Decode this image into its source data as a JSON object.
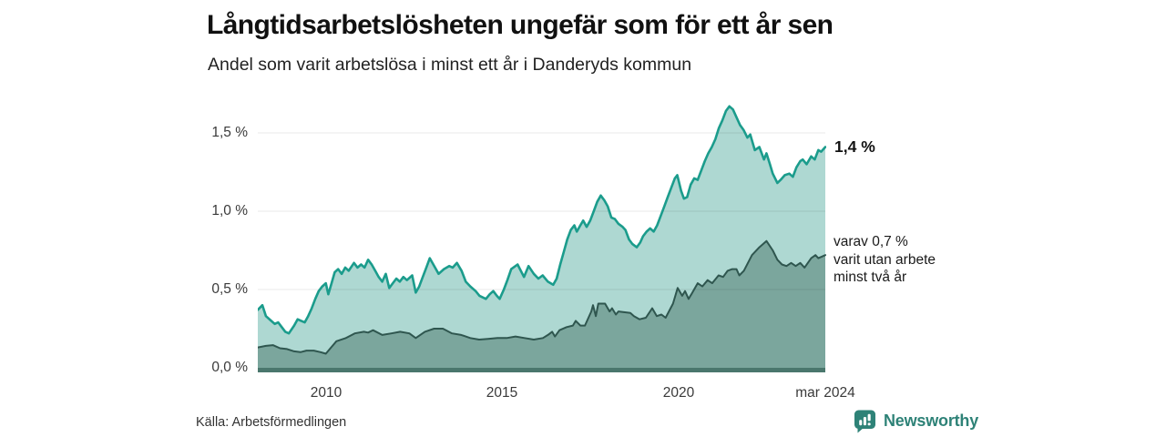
{
  "source": "Källa: Arbetsförmedlingen",
  "branding": {
    "name": "Newsworthy",
    "color": "#2e8277",
    "icon": "bar-chart-speech-bubble"
  },
  "chart_data": {
    "type": "area",
    "title": "Långtidsarbetslösheten ungefär som för ett år sen",
    "subtitle": "Andel som varit arbetslösa i minst ett år i Danderyds kommun",
    "unit": "%",
    "grid": true,
    "legend_position": "right-annotations",
    "x_domain": [
      2008.07,
      2024.17
    ],
    "y_domain": [
      0,
      1.8
    ],
    "x_ticks": [
      {
        "value": 2010,
        "label": "2010"
      },
      {
        "value": 2015,
        "label": "2015"
      },
      {
        "value": 2020,
        "label": "2020"
      },
      {
        "value": 2024.17,
        "label": "mar 2024"
      }
    ],
    "y_ticks": [
      {
        "value": 0.0,
        "label": "0,0 %"
      },
      {
        "value": 0.5,
        "label": "0,5 %"
      },
      {
        "value": 1.0,
        "label": "1,0 %"
      },
      {
        "value": 1.5,
        "label": "1,5 %"
      }
    ],
    "baseline_color": "#4a776d",
    "gridline_color": "rgba(0,0,0,0.09)",
    "series": [
      {
        "name": "Andel arbetslösa minst ett år",
        "color": "#1b9c8c",
        "fill": "#aed8d2",
        "latest_value": 1.4,
        "latest_label": "1,4 %",
        "points": [
          [
            2008.07,
            0.37
          ],
          [
            2008.2,
            0.4
          ],
          [
            2008.3,
            0.33
          ],
          [
            2008.45,
            0.3
          ],
          [
            2008.55,
            0.28
          ],
          [
            2008.65,
            0.29
          ],
          [
            2008.75,
            0.26
          ],
          [
            2008.85,
            0.23
          ],
          [
            2008.95,
            0.22
          ],
          [
            2009.1,
            0.27
          ],
          [
            2009.2,
            0.31
          ],
          [
            2009.3,
            0.3
          ],
          [
            2009.4,
            0.29
          ],
          [
            2009.5,
            0.33
          ],
          [
            2009.6,
            0.38
          ],
          [
            2009.7,
            0.44
          ],
          [
            2009.8,
            0.49
          ],
          [
            2009.9,
            0.52
          ],
          [
            2010.0,
            0.54
          ],
          [
            2010.07,
            0.47
          ],
          [
            2010.15,
            0.53
          ],
          [
            2010.25,
            0.61
          ],
          [
            2010.35,
            0.63
          ],
          [
            2010.45,
            0.6
          ],
          [
            2010.55,
            0.64
          ],
          [
            2010.65,
            0.62
          ],
          [
            2010.8,
            0.67
          ],
          [
            2010.9,
            0.64
          ],
          [
            2011.0,
            0.66
          ],
          [
            2011.1,
            0.64
          ],
          [
            2011.2,
            0.69
          ],
          [
            2011.3,
            0.66
          ],
          [
            2011.4,
            0.62
          ],
          [
            2011.5,
            0.58
          ],
          [
            2011.6,
            0.55
          ],
          [
            2011.7,
            0.6
          ],
          [
            2011.8,
            0.51
          ],
          [
            2011.9,
            0.54
          ],
          [
            2012.0,
            0.57
          ],
          [
            2012.1,
            0.55
          ],
          [
            2012.2,
            0.58
          ],
          [
            2012.3,
            0.56
          ],
          [
            2012.45,
            0.59
          ],
          [
            2012.55,
            0.48
          ],
          [
            2012.65,
            0.52
          ],
          [
            2012.75,
            0.58
          ],
          [
            2012.85,
            0.64
          ],
          [
            2012.95,
            0.7
          ],
          [
            2013.05,
            0.66
          ],
          [
            2013.2,
            0.6
          ],
          [
            2013.35,
            0.63
          ],
          [
            2013.5,
            0.65
          ],
          [
            2013.6,
            0.64
          ],
          [
            2013.72,
            0.67
          ],
          [
            2013.85,
            0.62
          ],
          [
            2013.97,
            0.55
          ],
          [
            2014.1,
            0.52
          ],
          [
            2014.25,
            0.49
          ],
          [
            2014.36,
            0.46
          ],
          [
            2014.54,
            0.44
          ],
          [
            2014.65,
            0.47
          ],
          [
            2014.75,
            0.49
          ],
          [
            2014.85,
            0.46
          ],
          [
            2014.93,
            0.44
          ],
          [
            2015.05,
            0.5
          ],
          [
            2015.15,
            0.56
          ],
          [
            2015.26,
            0.63
          ],
          [
            2015.44,
            0.66
          ],
          [
            2015.62,
            0.58
          ],
          [
            2015.75,
            0.65
          ],
          [
            2015.9,
            0.6
          ],
          [
            2016.03,
            0.57
          ],
          [
            2016.15,
            0.59
          ],
          [
            2016.3,
            0.55
          ],
          [
            2016.45,
            0.53
          ],
          [
            2016.55,
            0.57
          ],
          [
            2016.65,
            0.66
          ],
          [
            2016.75,
            0.74
          ],
          [
            2016.85,
            0.82
          ],
          [
            2016.95,
            0.88
          ],
          [
            2017.05,
            0.91
          ],
          [
            2017.12,
            0.87
          ],
          [
            2017.22,
            0.91
          ],
          [
            2017.3,
            0.94
          ],
          [
            2017.4,
            0.9
          ],
          [
            2017.5,
            0.94
          ],
          [
            2017.6,
            1.0
          ],
          [
            2017.7,
            1.06
          ],
          [
            2017.8,
            1.1
          ],
          [
            2017.9,
            1.07
          ],
          [
            2018.0,
            1.03
          ],
          [
            2018.1,
            0.96
          ],
          [
            2018.2,
            0.95
          ],
          [
            2018.3,
            0.92
          ],
          [
            2018.42,
            0.9
          ],
          [
            2018.5,
            0.88
          ],
          [
            2018.6,
            0.82
          ],
          [
            2018.7,
            0.79
          ],
          [
            2018.82,
            0.77
          ],
          [
            2018.92,
            0.8
          ],
          [
            2019.0,
            0.84
          ],
          [
            2019.1,
            0.87
          ],
          [
            2019.2,
            0.89
          ],
          [
            2019.3,
            0.87
          ],
          [
            2019.4,
            0.91
          ],
          [
            2019.5,
            0.97
          ],
          [
            2019.6,
            1.03
          ],
          [
            2019.7,
            1.09
          ],
          [
            2019.8,
            1.15
          ],
          [
            2019.9,
            1.21
          ],
          [
            2019.97,
            1.23
          ],
          [
            2020.08,
            1.13
          ],
          [
            2020.16,
            1.08
          ],
          [
            2020.25,
            1.09
          ],
          [
            2020.35,
            1.17
          ],
          [
            2020.45,
            1.21
          ],
          [
            2020.55,
            1.2
          ],
          [
            2020.65,
            1.26
          ],
          [
            2020.75,
            1.32
          ],
          [
            2020.85,
            1.37
          ],
          [
            2020.95,
            1.41
          ],
          [
            2021.05,
            1.46
          ],
          [
            2021.15,
            1.53
          ],
          [
            2021.25,
            1.58
          ],
          [
            2021.35,
            1.64
          ],
          [
            2021.45,
            1.67
          ],
          [
            2021.55,
            1.65
          ],
          [
            2021.65,
            1.6
          ],
          [
            2021.75,
            1.55
          ],
          [
            2021.85,
            1.52
          ],
          [
            2021.96,
            1.47
          ],
          [
            2022.04,
            1.49
          ],
          [
            2022.17,
            1.39
          ],
          [
            2022.3,
            1.41
          ],
          [
            2022.43,
            1.33
          ],
          [
            2022.5,
            1.37
          ],
          [
            2022.6,
            1.3
          ],
          [
            2022.68,
            1.24
          ],
          [
            2022.81,
            1.18
          ],
          [
            2022.9,
            1.2
          ],
          [
            2023.02,
            1.23
          ],
          [
            2023.15,
            1.24
          ],
          [
            2023.25,
            1.22
          ],
          [
            2023.35,
            1.28
          ],
          [
            2023.46,
            1.32
          ],
          [
            2023.53,
            1.33
          ],
          [
            2023.64,
            1.3
          ],
          [
            2023.77,
            1.35
          ],
          [
            2023.87,
            1.33
          ],
          [
            2023.97,
            1.39
          ],
          [
            2024.05,
            1.38
          ],
          [
            2024.17,
            1.41
          ]
        ]
      },
      {
        "name": "Andel utan arbete minst två år",
        "color": "#2f564f",
        "fill": "#7ba69d",
        "latest_value": 0.7,
        "annotation_lines": [
          "varav 0,7 %",
          "varit utan arbete",
          "minst två år"
        ],
        "points": [
          [
            2008.07,
            0.13
          ],
          [
            2008.3,
            0.14
          ],
          [
            2008.5,
            0.145
          ],
          [
            2008.7,
            0.125
          ],
          [
            2008.9,
            0.12
          ],
          [
            2009.1,
            0.105
          ],
          [
            2009.28,
            0.1
          ],
          [
            2009.45,
            0.11
          ],
          [
            2009.66,
            0.11
          ],
          [
            2009.85,
            0.1
          ],
          [
            2010.0,
            0.09
          ],
          [
            2010.15,
            0.13
          ],
          [
            2010.3,
            0.17
          ],
          [
            2010.57,
            0.19
          ],
          [
            2010.82,
            0.22
          ],
          [
            2011.08,
            0.23
          ],
          [
            2011.2,
            0.225
          ],
          [
            2011.34,
            0.24
          ],
          [
            2011.6,
            0.21
          ],
          [
            2011.86,
            0.22
          ],
          [
            2012.11,
            0.23
          ],
          [
            2012.37,
            0.22
          ],
          [
            2012.55,
            0.19
          ],
          [
            2012.81,
            0.23
          ],
          [
            2013.07,
            0.25
          ],
          [
            2013.32,
            0.25
          ],
          [
            2013.58,
            0.22
          ],
          [
            2013.84,
            0.21
          ],
          [
            2014.1,
            0.19
          ],
          [
            2014.35,
            0.18
          ],
          [
            2014.6,
            0.185
          ],
          [
            2014.87,
            0.19
          ],
          [
            2015.13,
            0.19
          ],
          [
            2015.38,
            0.2
          ],
          [
            2015.64,
            0.19
          ],
          [
            2015.9,
            0.18
          ],
          [
            2016.16,
            0.19
          ],
          [
            2016.3,
            0.21
          ],
          [
            2016.42,
            0.23
          ],
          [
            2016.5,
            0.2
          ],
          [
            2016.63,
            0.24
          ],
          [
            2016.83,
            0.26
          ],
          [
            2017.01,
            0.27
          ],
          [
            2017.09,
            0.3
          ],
          [
            2017.22,
            0.27
          ],
          [
            2017.35,
            0.27
          ],
          [
            2017.53,
            0.36
          ],
          [
            2017.58,
            0.4
          ],
          [
            2017.66,
            0.33
          ],
          [
            2017.73,
            0.41
          ],
          [
            2017.92,
            0.41
          ],
          [
            2018.05,
            0.36
          ],
          [
            2018.12,
            0.38
          ],
          [
            2018.23,
            0.34
          ],
          [
            2018.3,
            0.36
          ],
          [
            2018.64,
            0.35
          ],
          [
            2018.74,
            0.33
          ],
          [
            2018.9,
            0.31
          ],
          [
            2019.08,
            0.32
          ],
          [
            2019.26,
            0.38
          ],
          [
            2019.39,
            0.33
          ],
          [
            2019.52,
            0.34
          ],
          [
            2019.64,
            0.32
          ],
          [
            2019.85,
            0.41
          ],
          [
            2019.98,
            0.51
          ],
          [
            2020.11,
            0.46
          ],
          [
            2020.19,
            0.49
          ],
          [
            2020.29,
            0.44
          ],
          [
            2020.37,
            0.47
          ],
          [
            2020.55,
            0.54
          ],
          [
            2020.68,
            0.52
          ],
          [
            2020.83,
            0.56
          ],
          [
            2020.96,
            0.54
          ],
          [
            2021.14,
            0.59
          ],
          [
            2021.27,
            0.58
          ],
          [
            2021.4,
            0.62
          ],
          [
            2021.53,
            0.63
          ],
          [
            2021.65,
            0.63
          ],
          [
            2021.73,
            0.59
          ],
          [
            2021.86,
            0.62
          ],
          [
            2022.09,
            0.72
          ],
          [
            2022.3,
            0.77
          ],
          [
            2022.5,
            0.81
          ],
          [
            2022.68,
            0.75
          ],
          [
            2022.81,
            0.69
          ],
          [
            2022.94,
            0.66
          ],
          [
            2023.07,
            0.65
          ],
          [
            2023.2,
            0.67
          ],
          [
            2023.33,
            0.65
          ],
          [
            2023.46,
            0.67
          ],
          [
            2023.58,
            0.64
          ],
          [
            2023.77,
            0.7
          ],
          [
            2023.89,
            0.72
          ],
          [
            2023.97,
            0.7
          ],
          [
            2024.07,
            0.71
          ],
          [
            2024.17,
            0.72
          ]
        ]
      }
    ]
  }
}
